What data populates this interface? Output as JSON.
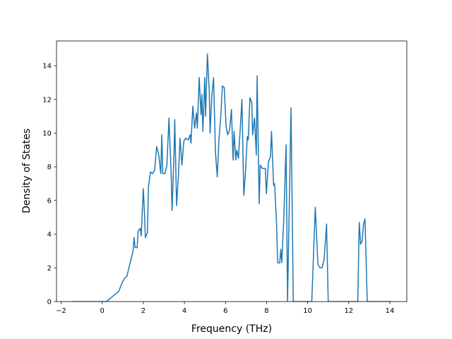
{
  "chart_data": {
    "type": "line",
    "xlabel": "Frequency (THz)",
    "ylabel": "Density of States",
    "color": "#1f77b4",
    "x": [
      -1.45,
      0.2,
      0.3,
      0.5,
      0.8,
      1.0,
      1.1,
      1.2,
      1.3,
      1.4,
      1.5,
      1.55,
      1.6,
      1.7,
      1.75,
      1.85,
      1.9,
      2.0,
      2.05,
      2.1,
      2.2,
      2.25,
      2.35,
      2.45,
      2.55,
      2.65,
      2.75,
      2.85,
      2.9,
      2.95,
      3.05,
      3.15,
      3.25,
      3.35,
      3.4,
      3.5,
      3.53,
      3.62,
      3.71,
      3.79,
      3.88,
      3.97,
      4.06,
      4.19,
      4.28,
      4.32,
      4.41,
      4.5,
      4.59,
      4.63,
      4.72,
      4.81,
      4.85,
      4.9,
      4.99,
      5.03,
      5.12,
      5.21,
      5.25,
      5.34,
      5.42,
      5.51,
      5.6,
      5.68,
      5.77,
      5.85,
      5.94,
      6.03,
      6.11,
      6.2,
      6.29,
      6.37,
      6.42,
      6.5,
      6.55,
      6.63,
      6.72,
      6.8,
      6.89,
      6.98,
      7.06,
      7.11,
      7.19,
      7.28,
      7.32,
      7.41,
      7.5,
      7.54,
      7.64,
      7.69,
      7.79,
      7.94,
      7.99,
      8.09,
      8.19,
      8.24,
      8.34,
      8.39,
      8.49,
      8.54,
      8.64,
      8.69,
      8.74,
      8.84,
      8.95,
      9.02,
      9.19,
      9.3,
      10.2,
      10.37,
      10.5,
      10.6,
      10.7,
      10.8,
      10.92,
      11.0,
      12.44,
      12.51,
      12.58,
      12.65,
      12.72,
      12.79,
      12.9,
      14.05
    ],
    "values": [
      0,
      0,
      0.1,
      0.3,
      0.6,
      1.2,
      1.4,
      1.5,
      2.0,
      2.5,
      3.0,
      3.8,
      3.2,
      3.2,
      4.2,
      4.35,
      3.9,
      6.7,
      5.5,
      3.8,
      4.1,
      6.8,
      7.7,
      7.6,
      7.8,
      9.2,
      8.7,
      7.6,
      9.9,
      7.6,
      7.6,
      8.1,
      10.9,
      7.8,
      5.4,
      9.0,
      10.8,
      5.7,
      7.5,
      9.7,
      8.1,
      9.5,
      9.7,
      9.6,
      9.9,
      9.4,
      11.6,
      10.3,
      11.2,
      10.3,
      13.3,
      11.1,
      12.3,
      10.1,
      13.3,
      11.0,
      14.7,
      12.5,
      10.0,
      12.3,
      13.3,
      8.9,
      7.4,
      9.6,
      11.0,
      12.8,
      12.7,
      10.4,
      9.9,
      10.2,
      11.4,
      8.4,
      10.1,
      8.4,
      9.0,
      8.5,
      10.3,
      12.0,
      6.3,
      7.8,
      9.8,
      9.6,
      12.1,
      11.8,
      9.9,
      10.9,
      8.7,
      13.4,
      5.8,
      8.1,
      7.9,
      7.9,
      6.4,
      8.3,
      8.6,
      10.1,
      6.9,
      7.0,
      4.5,
      2.3,
      2.3,
      3.1,
      2.3,
      5.0,
      9.3,
      0,
      11.5,
      0,
      0,
      5.6,
      2.2,
      2.0,
      2.0,
      2.5,
      4.6,
      0,
      0,
      4.7,
      3.4,
      3.6,
      4.6,
      4.9,
      0,
      0
    ],
    "xlim": [
      -2.225,
      14.825
    ],
    "xticks": [
      {
        "value": -2,
        "label": "−2"
      },
      0,
      2,
      4,
      6,
      8,
      10,
      12,
      14
    ],
    "ylim": [
      0,
      15.47
    ],
    "yticks": [
      0,
      2,
      4,
      6,
      8,
      10,
      12,
      14
    ]
  }
}
